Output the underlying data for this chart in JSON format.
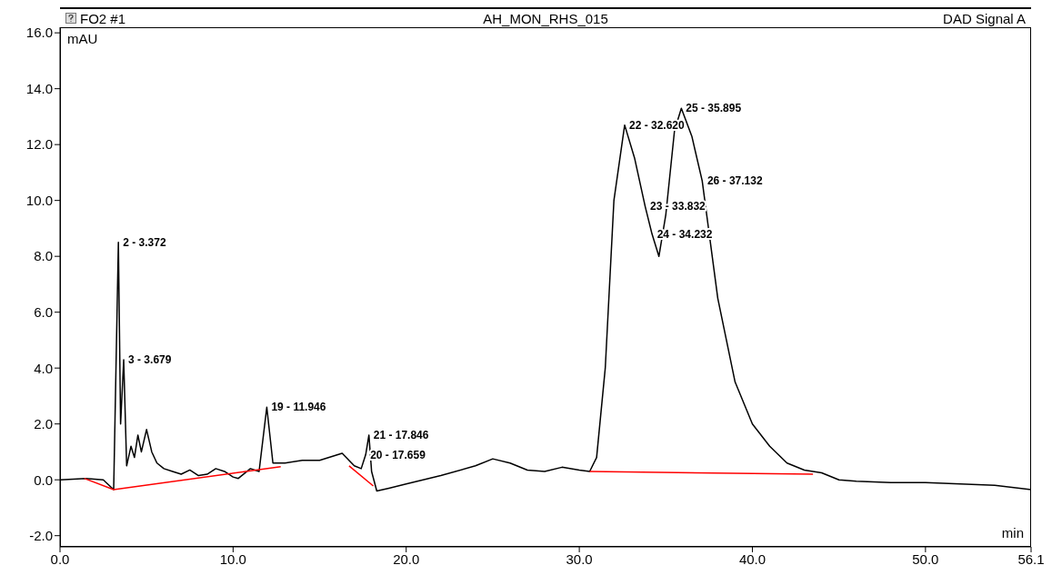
{
  "chart_data": {
    "type": "line",
    "title": "AH_MON_RHS_015",
    "subtitle": "DAD Signal A",
    "xlabel": "min",
    "ylabel": "mAU",
    "xlim": [
      0,
      56.1
    ],
    "ylim": [
      -2.4,
      16.2
    ],
    "xticks": [
      {
        "value": 0,
        "label": "0.0"
      },
      {
        "value": 10,
        "label": "10.0"
      },
      {
        "value": 20,
        "label": "20.0"
      },
      {
        "value": 30,
        "label": "30.0"
      },
      {
        "value": 40,
        "label": "40.0"
      },
      {
        "value": 50,
        "label": "50.0"
      },
      {
        "value": 56.1,
        "label": "56.1"
      }
    ],
    "yticks": [
      {
        "value": -2,
        "label": "-2.0"
      },
      {
        "value": 0,
        "label": "0.0"
      },
      {
        "value": 2,
        "label": "2.0"
      },
      {
        "value": 4,
        "label": "4.0"
      },
      {
        "value": 6,
        "label": "6.0"
      },
      {
        "value": 8,
        "label": "8.0"
      },
      {
        "value": 10,
        "label": "10.0"
      },
      {
        "value": 12,
        "label": "12.0"
      },
      {
        "value": 14,
        "label": "14.0"
      },
      {
        "value": 16,
        "label": "16.0"
      }
    ],
    "grid": false,
    "marker": "none",
    "line_style": "solid",
    "series": [
      {
        "color": "#000000",
        "x": [
          0,
          1.5,
          2.5,
          3.1,
          3.372,
          3.5,
          3.679,
          3.85,
          4.1,
          4.3,
          4.5,
          4.7,
          5.0,
          5.3,
          5.6,
          6.0,
          6.5,
          7.0,
          7.5,
          8.0,
          8.5,
          9.0,
          9.5,
          10.0,
          10.3,
          11.0,
          11.5,
          11.946,
          12.3,
          13.0,
          14.0,
          15.0,
          16.3,
          17.0,
          17.4,
          17.659,
          17.846,
          18.0,
          18.3,
          19,
          20,
          22,
          24,
          25,
          26,
          27,
          28,
          29,
          30,
          30.6,
          31.0,
          31.5,
          32,
          32.62,
          33.2,
          33.8,
          34.2,
          34.6,
          35.0,
          35.5,
          35.895,
          36.5,
          37.1,
          38,
          39,
          40,
          41,
          42,
          43,
          44,
          45,
          46,
          48,
          50,
          52,
          54,
          56.1
        ],
        "values": [
          0.0,
          0.05,
          0.0,
          -0.35,
          8.5,
          2.0,
          4.3,
          0.5,
          1.2,
          0.8,
          1.6,
          1.0,
          1.8,
          1.0,
          0.6,
          0.4,
          0.3,
          0.2,
          0.35,
          0.15,
          0.2,
          0.4,
          0.3,
          0.1,
          0.05,
          0.4,
          0.3,
          2.6,
          0.6,
          0.6,
          0.7,
          0.7,
          0.95,
          0.5,
          0.4,
          0.9,
          1.6,
          0.3,
          -0.4,
          -0.3,
          -0.15,
          0.15,
          0.5,
          0.75,
          0.6,
          0.35,
          0.3,
          0.45,
          0.35,
          0.3,
          0.8,
          4,
          10,
          12.7,
          11.5,
          9.8,
          8.8,
          8.0,
          9.5,
          12.5,
          13.3,
          12.3,
          10.7,
          6.5,
          3.5,
          2.0,
          1.2,
          0.6,
          0.35,
          0.25,
          0.0,
          -0.05,
          -0.1,
          -0.1,
          -0.15,
          -0.2,
          -0.35
        ]
      },
      {
        "color": "#ff0000",
        "x": [
          1.4,
          3.1,
          12.75
        ],
        "values": [
          0.05,
          -0.35,
          0.47
        ]
      },
      {
        "color": "#ff0000",
        "x": [
          16.7,
          18.1
        ],
        "values": [
          0.5,
          -0.22
        ]
      },
      {
        "color": "#ff0000",
        "x": [
          30.6,
          43.5
        ],
        "values": [
          0.3,
          0.2
        ]
      }
    ],
    "annotations": [
      "FO2 #1",
      {
        "text": "2 - 3.372",
        "x": 3.372,
        "y": 8.5
      },
      {
        "text": "3 - 3.679",
        "x": 3.679,
        "y": 4.3
      },
      {
        "text": "19 - 11.946",
        "x": 11.946,
        "y": 2.6
      },
      {
        "text": "20 - 17.659",
        "x": 17.659,
        "y": 0.9
      },
      {
        "text": "21 - 17.846",
        "x": 17.846,
        "y": 1.6
      },
      {
        "text": "22 - 32.620",
        "x": 32.62,
        "y": 12.7
      },
      {
        "text": "23 - 33.832",
        "x": 33.832,
        "y": 9.8
      },
      {
        "text": "24 - 34.232",
        "x": 34.232,
        "y": 8.8
      },
      {
        "text": "25 - 35.895",
        "x": 35.895,
        "y": 13.3
      },
      {
        "text": "26 - 37.132",
        "x": 37.132,
        "y": 10.7
      }
    ]
  }
}
